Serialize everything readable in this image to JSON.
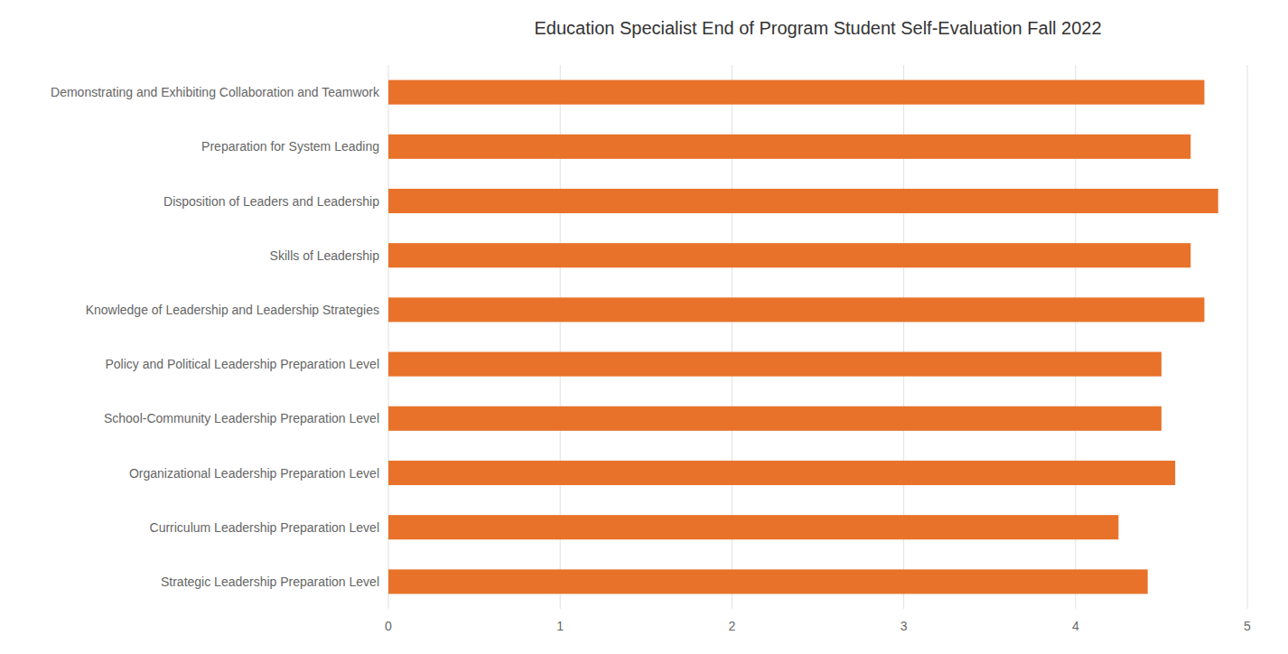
{
  "chart_data": {
    "type": "bar",
    "orientation": "horizontal",
    "title": "Education Specialist End of Program Student Self-Evaluation Fall 2022",
    "categories": [
      "Strategic Leadership Preparation Level",
      "Curriculum Leadership Preparation Level",
      "Organizational Leadership Preparation Level",
      "School-Community Leadership Preparation Level",
      "Policy and Political Leadership Preparation Level",
      "Knowledge of Leadership and Leadership Strategies",
      "Skills of Leadership",
      "Disposition of Leaders and Leadership",
      "Preparation for System Leading",
      "Demonstrating and Exhibiting Collaboration and Teamwork"
    ],
    "values": [
      4.42,
      4.25,
      4.58,
      4.5,
      4.5,
      4.75,
      4.67,
      4.83,
      4.67,
      4.75
    ],
    "color": "#E8722A",
    "xlim": [
      0,
      5
    ],
    "xticks": [
      0,
      1,
      2,
      3,
      4,
      5
    ],
    "grid": true
  }
}
